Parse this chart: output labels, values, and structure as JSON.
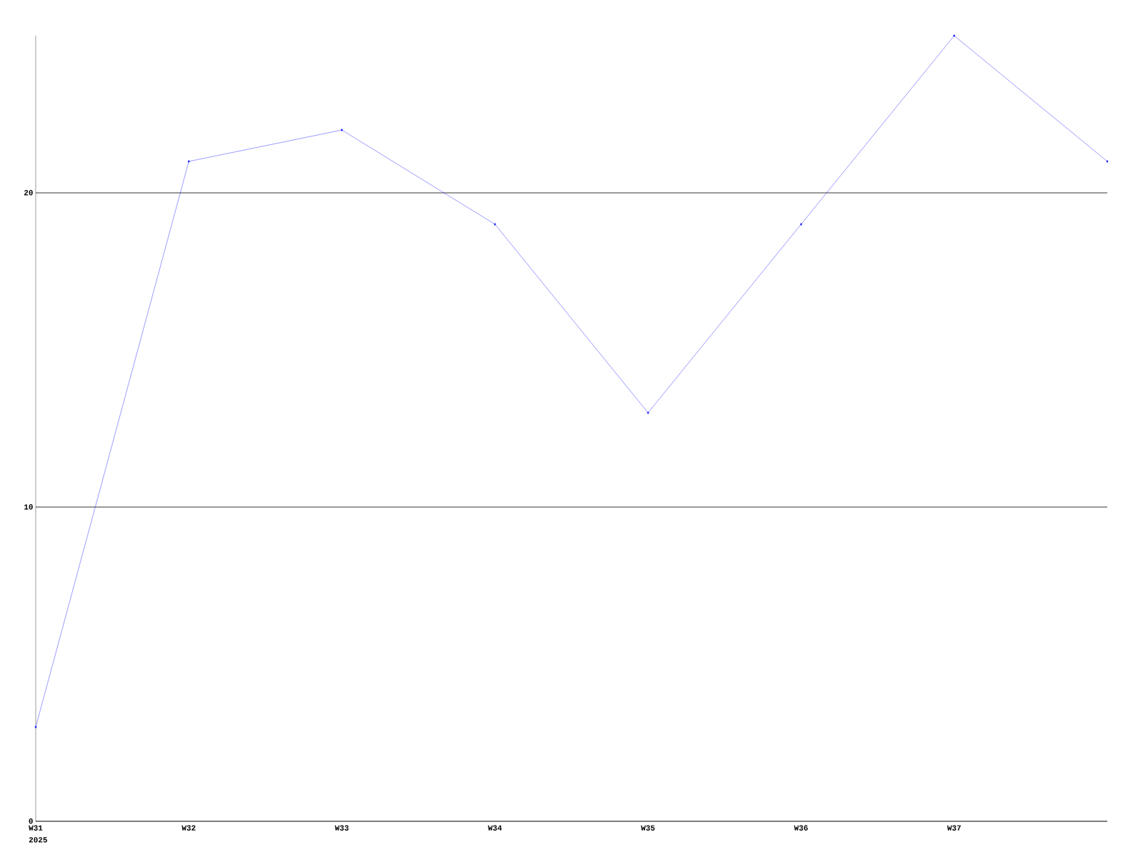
{
  "chart_data": {
    "type": "line",
    "categories": [
      "W31",
      "W32",
      "W33",
      "W34",
      "W35",
      "W36",
      "W37",
      null
    ],
    "series": [
      {
        "color": "#0000ff",
        "values": [
          3,
          21,
          22,
          19,
          13,
          19,
          25,
          21
        ]
      }
    ],
    "ylim": [
      0,
      25
    ],
    "yticks": [
      0,
      10,
      20
    ],
    "grid": "y",
    "marker": "diamond",
    "line_style": "solid",
    "annotations": [
      "2025"
    ]
  }
}
